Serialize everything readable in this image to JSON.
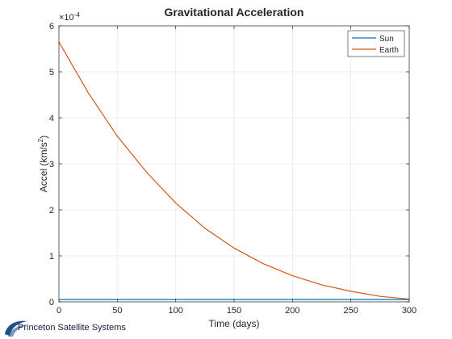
{
  "chart_data": {
    "type": "line",
    "title": "Gravitational Acceleration",
    "xlabel": "Time (days)",
    "ylabel_main": "Accel (km/s",
    "ylabel_sup": "2",
    "ylabel_close": ")",
    "exponent_prefix": "×10",
    "exponent_power": "-4",
    "xlim": [
      0,
      300
    ],
    "ylim": [
      0,
      6
    ],
    "xticks": [
      0,
      50,
      100,
      150,
      200,
      250,
      300
    ],
    "yticks": [
      0,
      1,
      2,
      3,
      4,
      5,
      6
    ],
    "grid": true,
    "legend_position": "top-right",
    "x": [
      0,
      25,
      50,
      75,
      100,
      125,
      150,
      175,
      200,
      225,
      250,
      275,
      300
    ],
    "series": [
      {
        "name": "Sun",
        "color": "#0072BD",
        "values": [
          0.05,
          0.05,
          0.05,
          0.05,
          0.05,
          0.05,
          0.05,
          0.05,
          0.05,
          0.05,
          0.05,
          0.05,
          0.05
        ]
      },
      {
        "name": "Earth",
        "color": "#D95319",
        "values": [
          5.65,
          4.55,
          3.6,
          2.82,
          2.15,
          1.6,
          1.17,
          0.83,
          0.57,
          0.37,
          0.23,
          0.12,
          0.06
        ]
      }
    ]
  },
  "logo": {
    "text": "Princeton Satellite Systems",
    "color": "#1f4e8c"
  }
}
